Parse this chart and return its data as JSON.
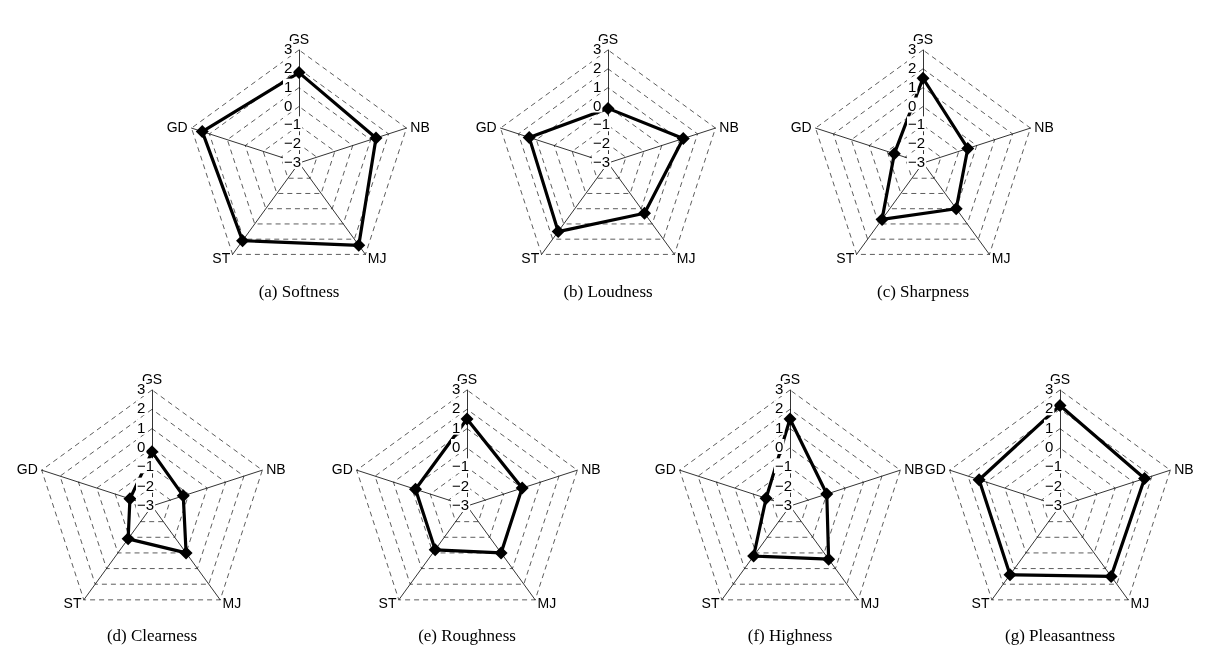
{
  "chart_data": [
    {
      "type": "radar",
      "title": "(a) Softness",
      "categories": [
        "GS",
        "NB",
        "MJ",
        "ST",
        "GD"
      ],
      "ylim": [
        -3,
        3
      ],
      "yticks": [
        -3,
        -2,
        -1,
        0,
        1,
        2,
        3
      ],
      "grid": true,
      "marker": "diamond",
      "line_style": "solid",
      "series": [
        {
          "color": "#000000",
          "values": [
            1.8,
            1.3,
            2.4,
            2.1,
            2.4
          ]
        }
      ]
    },
    {
      "type": "radar",
      "title": "(b) Loudness",
      "categories": [
        "GS",
        "NB",
        "MJ",
        "ST",
        "GD"
      ],
      "ylim": [
        -3,
        3
      ],
      "yticks": [
        -3,
        -2,
        -1,
        0,
        1,
        2,
        3
      ],
      "grid": true,
      "marker": "diamond",
      "line_style": "solid",
      "series": [
        {
          "color": "#000000",
          "values": [
            -0.1,
            1.2,
            0.3,
            1.5,
            1.4
          ]
        }
      ]
    },
    {
      "type": "radar",
      "title": "(c) Sharpness",
      "categories": [
        "GS",
        "NB",
        "MJ",
        "ST",
        "GD"
      ],
      "ylim": [
        -3,
        3
      ],
      "yticks": [
        -3,
        -2,
        -1,
        0,
        1,
        2,
        3
      ],
      "grid": true,
      "marker": "diamond",
      "line_style": "solid",
      "series": [
        {
          "color": "#000000",
          "values": [
            1.5,
            -0.5,
            0,
            0.7,
            -1.4
          ]
        }
      ]
    },
    {
      "type": "radar",
      "title": "(d) Clearness",
      "categories": [
        "GS",
        "NB",
        "MJ",
        "ST",
        "GD"
      ],
      "ylim": [
        -3,
        3
      ],
      "yticks": [
        -3,
        -2,
        -1,
        0,
        1,
        2,
        3
      ],
      "grid": true,
      "marker": "diamond",
      "line_style": "solid",
      "series": [
        {
          "color": "#000000",
          "values": [
            -0.2,
            -1.3,
            0,
            -0.9,
            -1.8
          ]
        }
      ]
    },
    {
      "type": "radar",
      "title": "(e) Roughness",
      "categories": [
        "GS",
        "NB",
        "MJ",
        "ST",
        "GD"
      ],
      "ylim": [
        -3,
        3
      ],
      "yticks": [
        -3,
        -2,
        -1,
        0,
        1,
        2,
        3
      ],
      "grid": true,
      "marker": "diamond",
      "line_style": "solid",
      "series": [
        {
          "color": "#000000",
          "values": [
            1.5,
            0,
            0,
            -0.2,
            -0.2
          ]
        }
      ]
    },
    {
      "type": "radar",
      "title": "(f) Highness",
      "categories": [
        "GS",
        "NB",
        "MJ",
        "ST",
        "GD"
      ],
      "ylim": [
        -3,
        3
      ],
      "yticks": [
        -3,
        -2,
        -1,
        0,
        1,
        2,
        3
      ],
      "grid": true,
      "marker": "diamond",
      "line_style": "solid",
      "series": [
        {
          "color": "#000000",
          "values": [
            1.5,
            -1.0,
            0.4,
            0.2,
            -1.7
          ]
        }
      ]
    },
    {
      "type": "radar",
      "title": "(g) Pleasantness",
      "categories": [
        "GS",
        "NB",
        "MJ",
        "ST",
        "GD"
      ],
      "ylim": [
        -3,
        3
      ],
      "yticks": [
        -3,
        -2,
        -1,
        0,
        1,
        2,
        3
      ],
      "grid": true,
      "marker": "diamond",
      "line_style": "solid",
      "series": [
        {
          "color": "#000000",
          "values": [
            2.2,
            1.6,
            1.5,
            1.4,
            1.4
          ]
        }
      ]
    }
  ]
}
